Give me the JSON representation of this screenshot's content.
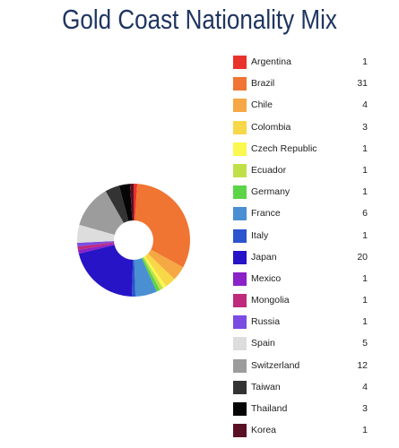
{
  "page": {
    "title": "Gold Coast Nationality Mix"
  },
  "chart_data": {
    "type": "pie",
    "donut": true,
    "title": "Gold Coast Nationality Mix",
    "legend_position": "right",
    "start_angle_deg": 0,
    "direction": "clockwise",
    "slices": [
      {
        "label": "Argentina",
        "value": 1,
        "color": "#e8322b"
      },
      {
        "label": "Brazil",
        "value": 31,
        "color": "#f07432"
      },
      {
        "label": "Chile",
        "value": 4,
        "color": "#f6a844"
      },
      {
        "label": "Colombia",
        "value": 3,
        "color": "#f8d748"
      },
      {
        "label": "Czech Republic",
        "value": 1,
        "color": "#faf84e"
      },
      {
        "label": "Ecuador",
        "value": 1,
        "color": "#c0e04a"
      },
      {
        "label": "Germany",
        "value": 1,
        "color": "#5dd446"
      },
      {
        "label": "France",
        "value": 6,
        "color": "#4a8fd1"
      },
      {
        "label": "Italy",
        "value": 1,
        "color": "#2a55cf"
      },
      {
        "label": "Japan",
        "value": 20,
        "color": "#2614c6"
      },
      {
        "label": "Mexico",
        "value": 1,
        "color": "#8a22c8"
      },
      {
        "label": "Mongolia",
        "value": 1,
        "color": "#be2a7c"
      },
      {
        "label": "Russia",
        "value": 1,
        "color": "#7a4ce2"
      },
      {
        "label": "Spain",
        "value": 5,
        "color": "#dddddd"
      },
      {
        "label": "Switzerland",
        "value": 12,
        "color": "#9c9c9c"
      },
      {
        "label": "Taiwan",
        "value": 4,
        "color": "#333333"
      },
      {
        "label": "Thailand",
        "value": 3,
        "color": "#050505"
      },
      {
        "label": "Korea",
        "value": 1,
        "color": "#5a1024"
      }
    ]
  }
}
